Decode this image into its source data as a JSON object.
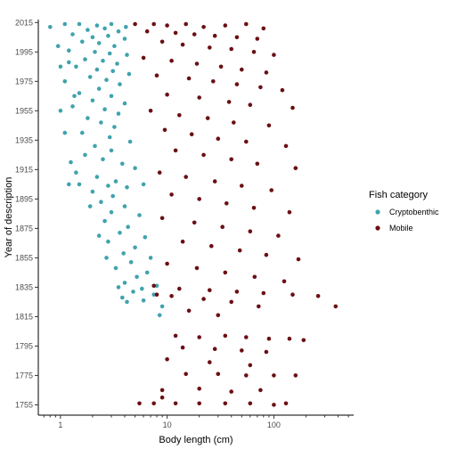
{
  "chart_data": {
    "type": "scatter",
    "title": "",
    "xlabel": "Body length (cm)",
    "ylabel": "Year of description",
    "x_scale": "log10",
    "xlim": [
      0.62,
      560
    ],
    "ylim": [
      1748,
      2017
    ],
    "x_ticks": [
      1,
      10,
      100
    ],
    "x_tick_labels": [
      "1",
      "10",
      "100"
    ],
    "y_ticks": [
      1755,
      1775,
      1795,
      1815,
      1835,
      1855,
      1875,
      1895,
      1915,
      1935,
      1955,
      1975,
      1995,
      2015
    ],
    "y_tick_labels": [
      "1755",
      "1775",
      "1795",
      "1815",
      "1835",
      "1855",
      "1875",
      "1895",
      "1915",
      "1935",
      "1955",
      "1975",
      "1995",
      "2015"
    ],
    "grid": false,
    "legend": {
      "title": "Fish category",
      "placement": "right",
      "entries": [
        "Cryptobenthic",
        "Mobile"
      ]
    },
    "series": [
      {
        "name": "Cryptobenthic",
        "color": "#3fa3ad",
        "points": [
          [
            1.1,
            2014
          ],
          [
            1.5,
            2014
          ],
          [
            2.2,
            2013
          ],
          [
            3.0,
            2014
          ],
          [
            4.1,
            2012
          ],
          [
            0.8,
            2012
          ],
          [
            1.8,
            2010
          ],
          [
            2.6,
            2011
          ],
          [
            3.5,
            2009
          ],
          [
            1.3,
            2007
          ],
          [
            2.0,
            2005
          ],
          [
            2.8,
            2006
          ],
          [
            4.0,
            2004
          ],
          [
            1.6,
            2002
          ],
          [
            2.3,
            2001
          ],
          [
            3.2,
            1999
          ],
          [
            1.2,
            1996
          ],
          [
            2.1,
            1995
          ],
          [
            2.9,
            1994
          ],
          [
            4.2,
            1993
          ],
          [
            1.7,
            1990
          ],
          [
            2.5,
            1989
          ],
          [
            3.4,
            1987
          ],
          [
            1.4,
            1985
          ],
          [
            2.2,
            1983
          ],
          [
            3.1,
            1982
          ],
          [
            4.4,
            1980
          ],
          [
            1.9,
            1978
          ],
          [
            2.7,
            1976
          ],
          [
            1.1,
            1975
          ],
          [
            3.6,
            1973
          ],
          [
            2.3,
            1970
          ],
          [
            1.5,
            1967
          ],
          [
            3.0,
            1965
          ],
          [
            2.0,
            1962
          ],
          [
            4.0,
            1960
          ],
          [
            1.3,
            1958
          ],
          [
            2.6,
            1956
          ],
          [
            3.5,
            1953
          ],
          [
            1.8,
            1950
          ],
          [
            2.4,
            1947
          ],
          [
            3.2,
            1944
          ],
          [
            1.6,
            1940
          ],
          [
            2.9,
            1937
          ],
          [
            4.5,
            1934
          ],
          [
            2.1,
            1931
          ],
          [
            3.0,
            1928
          ],
          [
            1.7,
            1925
          ],
          [
            2.5,
            1922
          ],
          [
            3.8,
            1919
          ],
          [
            5.0,
            1916
          ],
          [
            1.4,
            1913
          ],
          [
            2.2,
            1910
          ],
          [
            3.3,
            1907
          ],
          [
            1.2,
            1905
          ],
          [
            2.8,
            1904
          ],
          [
            4.2,
            1903
          ],
          [
            6.0,
            1905
          ],
          [
            2.0,
            1900
          ],
          [
            3.1,
            1897
          ],
          [
            2.4,
            1893
          ],
          [
            4.0,
            1890
          ],
          [
            3.0,
            1886
          ],
          [
            5.5,
            1884
          ],
          [
            2.6,
            1880
          ],
          [
            4.3,
            1876
          ],
          [
            3.6,
            1872
          ],
          [
            6.2,
            1869
          ],
          [
            2.8,
            1866
          ],
          [
            5.0,
            1862
          ],
          [
            3.9,
            1858
          ],
          [
            7.0,
            1855
          ],
          [
            4.6,
            1852
          ],
          [
            3.3,
            1848
          ],
          [
            6.5,
            1845
          ],
          [
            5.2,
            1842
          ],
          [
            4.0,
            1838
          ],
          [
            3.5,
            1835
          ],
          [
            5.8,
            1834
          ],
          [
            8.0,
            1836
          ],
          [
            4.8,
            1832
          ],
          [
            7.5,
            1830
          ],
          [
            6.0,
            1826
          ],
          [
            9.0,
            1822
          ],
          [
            4.2,
            1825
          ],
          [
            8.5,
            1816
          ],
          [
            1.0,
            1985
          ],
          [
            1.2,
            1988
          ],
          [
            0.95,
            1999
          ],
          [
            1.35,
            1965
          ],
          [
            1.0,
            1955
          ],
          [
            1.1,
            1940
          ],
          [
            1.25,
            1920
          ],
          [
            1.5,
            1905
          ],
          [
            1.9,
            1890
          ],
          [
            2.3,
            1870
          ],
          [
            2.7,
            1855
          ],
          [
            3.8,
            1828
          ]
        ]
      },
      {
        "name": "Mobile",
        "color": "#6b0f14",
        "points": [
          [
            5.0,
            2014
          ],
          [
            7.5,
            2014
          ],
          [
            10,
            2013
          ],
          [
            15,
            2014
          ],
          [
            22,
            2012
          ],
          [
            35,
            2013
          ],
          [
            55,
            2014
          ],
          [
            80,
            2011
          ],
          [
            6.5,
            2009
          ],
          [
            12,
            2008
          ],
          [
            18,
            2007
          ],
          [
            28,
            2006
          ],
          [
            45,
            2005
          ],
          [
            70,
            2004
          ],
          [
            9.0,
            2002
          ],
          [
            14,
            2000
          ],
          [
            25,
            1998
          ],
          [
            40,
            1997
          ],
          [
            65,
            1995
          ],
          [
            100,
            1993
          ],
          [
            6.0,
            1991
          ],
          [
            11,
            1989
          ],
          [
            19,
            1987
          ],
          [
            32,
            1985
          ],
          [
            50,
            1983
          ],
          [
            85,
            1981
          ],
          [
            8.0,
            1979
          ],
          [
            16,
            1977
          ],
          [
            27,
            1975
          ],
          [
            45,
            1973
          ],
          [
            75,
            1971
          ],
          [
            120,
            1969
          ],
          [
            10,
            1966
          ],
          [
            20,
            1964
          ],
          [
            38,
            1961
          ],
          [
            60,
            1959
          ],
          [
            150,
            1957
          ],
          [
            7.0,
            1955
          ],
          [
            13,
            1952
          ],
          [
            24,
            1950
          ],
          [
            42,
            1947
          ],
          [
            90,
            1945
          ],
          [
            9.5,
            1942
          ],
          [
            17,
            1939
          ],
          [
            30,
            1936
          ],
          [
            55,
            1934
          ],
          [
            130,
            1931
          ],
          [
            12,
            1928
          ],
          [
            22,
            1925
          ],
          [
            40,
            1922
          ],
          [
            70,
            1919
          ],
          [
            160,
            1916
          ],
          [
            8.5,
            1913
          ],
          [
            15,
            1910
          ],
          [
            28,
            1907
          ],
          [
            50,
            1904
          ],
          [
            95,
            1901
          ],
          [
            11,
            1898
          ],
          [
            20,
            1895
          ],
          [
            36,
            1892
          ],
          [
            65,
            1889
          ],
          [
            140,
            1886
          ],
          [
            9.0,
            1882
          ],
          [
            18,
            1879
          ],
          [
            33,
            1876
          ],
          [
            60,
            1873
          ],
          [
            110,
            1870
          ],
          [
            14,
            1866
          ],
          [
            26,
            1863
          ],
          [
            48,
            1860
          ],
          [
            85,
            1857
          ],
          [
            170,
            1854
          ],
          [
            10,
            1851
          ],
          [
            19,
            1848
          ],
          [
            35,
            1845
          ],
          [
            66,
            1842
          ],
          [
            125,
            1839
          ],
          [
            7.5,
            1836
          ],
          [
            13,
            1834
          ],
          [
            25,
            1833
          ],
          [
            45,
            1832
          ],
          [
            80,
            1831
          ],
          [
            150,
            1830
          ],
          [
            260,
            1829
          ],
          [
            11,
            1829
          ],
          [
            22,
            1827
          ],
          [
            40,
            1825
          ],
          [
            72,
            1822
          ],
          [
            380,
            1822
          ],
          [
            16,
            1819
          ],
          [
            30,
            1816
          ],
          [
            12,
            1802
          ],
          [
            20,
            1801
          ],
          [
            35,
            1802
          ],
          [
            55,
            1801
          ],
          [
            90,
            1800
          ],
          [
            140,
            1800
          ],
          [
            190,
            1799
          ],
          [
            14,
            1794
          ],
          [
            28,
            1793
          ],
          [
            50,
            1792
          ],
          [
            85,
            1791
          ],
          [
            10,
            1786
          ],
          [
            25,
            1784
          ],
          [
            60,
            1782
          ],
          [
            15,
            1776
          ],
          [
            30,
            1776
          ],
          [
            55,
            1775
          ],
          [
            100,
            1775
          ],
          [
            160,
            1775
          ],
          [
            9,
            1765
          ],
          [
            20,
            1766
          ],
          [
            40,
            1764
          ],
          [
            75,
            1765
          ],
          [
            7.5,
            1756
          ],
          [
            12,
            1756
          ],
          [
            20,
            1756
          ],
          [
            35,
            1756
          ],
          [
            60,
            1756
          ],
          [
            100,
            1755
          ],
          [
            130,
            1756
          ],
          [
            5.5,
            1756
          ],
          [
            8.0,
            1830
          ],
          [
            9.0,
            1760
          ]
        ]
      }
    ]
  }
}
